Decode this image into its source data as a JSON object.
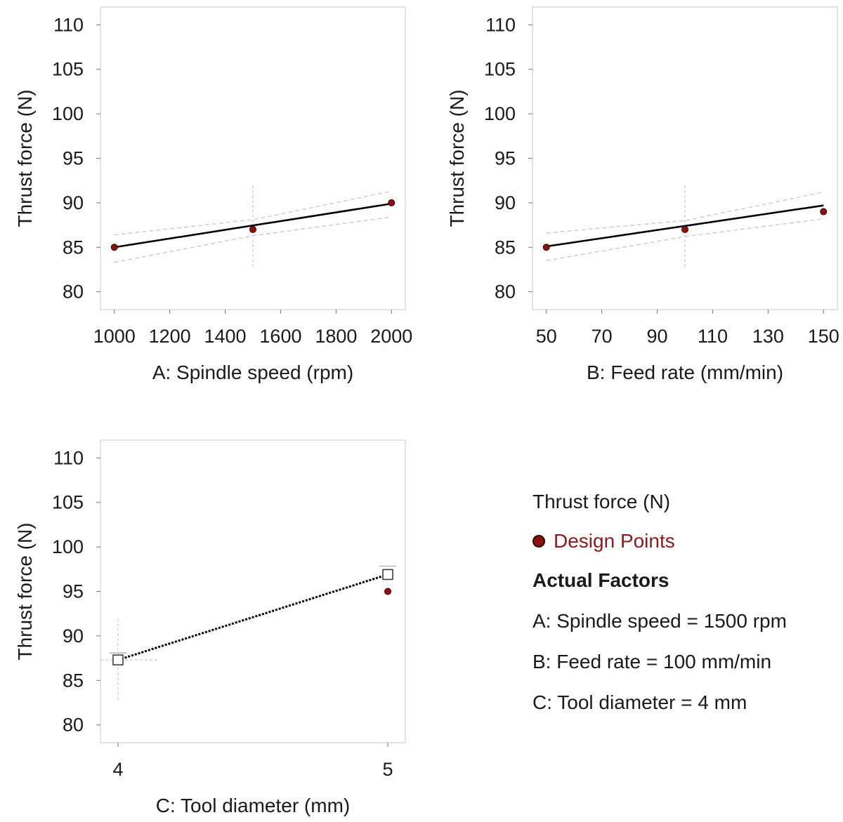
{
  "chart_data": [
    {
      "type": "line",
      "xlabel": "A: Spindle speed (rpm)",
      "ylabel": "Thrust force (N)",
      "xlim": [
        950,
        2050
      ],
      "ylim": [
        78,
        112
      ],
      "xticks": [
        1000,
        1200,
        1400,
        1600,
        1800,
        2000
      ],
      "yticks": [
        80,
        85,
        90,
        95,
        100,
        105,
        110
      ],
      "fit_line": {
        "x": [
          1000,
          2000
        ],
        "y": [
          85.0,
          89.9
        ]
      },
      "ci_upper": {
        "x": [
          1000,
          1500,
          2000
        ],
        "y": [
          86.4,
          88.1,
          91.3
        ]
      },
      "ci_lower": {
        "x": [
          1000,
          1500,
          2000
        ],
        "y": [
          83.3,
          86.3,
          88.4
        ]
      },
      "design_points": {
        "x": [
          1000,
          1500,
          2000
        ],
        "y": [
          85,
          87,
          90
        ]
      },
      "center_error_bar": {
        "x": 1500,
        "y_low": 82.8,
        "y_high": 92.2
      }
    },
    {
      "type": "line",
      "xlabel": "B: Feed rate (mm/min)",
      "ylabel": "Thrust force (N)",
      "xlim": [
        45,
        155
      ],
      "ylim": [
        78,
        112
      ],
      "xticks": [
        50,
        70,
        90,
        110,
        130,
        150
      ],
      "yticks": [
        80,
        85,
        90,
        95,
        100,
        105,
        110
      ],
      "fit_line": {
        "x": [
          50,
          150
        ],
        "y": [
          85.1,
          89.7
        ]
      },
      "ci_upper": {
        "x": [
          50,
          100,
          150
        ],
        "y": [
          86.6,
          88.0,
          91.2
        ]
      },
      "ci_lower": {
        "x": [
          50,
          100,
          150
        ],
        "y": [
          83.5,
          86.2,
          88.2
        ]
      },
      "design_points": {
        "x": [
          50,
          100,
          150
        ],
        "y": [
          85,
          87,
          89
        ]
      },
      "center_error_bar": {
        "x": 100,
        "y_low": 82.8,
        "y_high": 92.2
      }
    },
    {
      "type": "line",
      "xlabel": "C: Tool diameter (mm)",
      "ylabel": "Thrust force (N)",
      "xlim": [
        3.935,
        5.065
      ],
      "ylim": [
        78,
        112
      ],
      "xticks": [
        4,
        5
      ],
      "yticks": [
        80,
        85,
        90,
        95,
        100,
        105,
        110
      ],
      "fit_line": {
        "x": [
          4,
          5
        ],
        "y": [
          87.3,
          96.9
        ]
      },
      "interaction_points": {
        "x": [
          4,
          5
        ],
        "y": [
          87.3,
          96.9
        ]
      },
      "design_points": {
        "x": [
          5
        ],
        "y": [
          95
        ]
      },
      "center_error_bar": {
        "x": 4,
        "y_low": 82.8,
        "y_high": 92.2
      }
    }
  ],
  "legend": {
    "title": "Thrust force (N)",
    "design_points_label": "Design Points",
    "factors_heading": "Actual Factors",
    "factors": [
      "A: Spindle speed = 1500 rpm",
      "B: Feed rate = 100 mm/min",
      "C: Tool diameter = 4 mm"
    ]
  },
  "colors": {
    "design_point": "#8b1010",
    "fit_line": "#000000",
    "ci_band": "#c8c8c8",
    "frame": "#d0d0d0",
    "text": "#1a1a1a"
  }
}
